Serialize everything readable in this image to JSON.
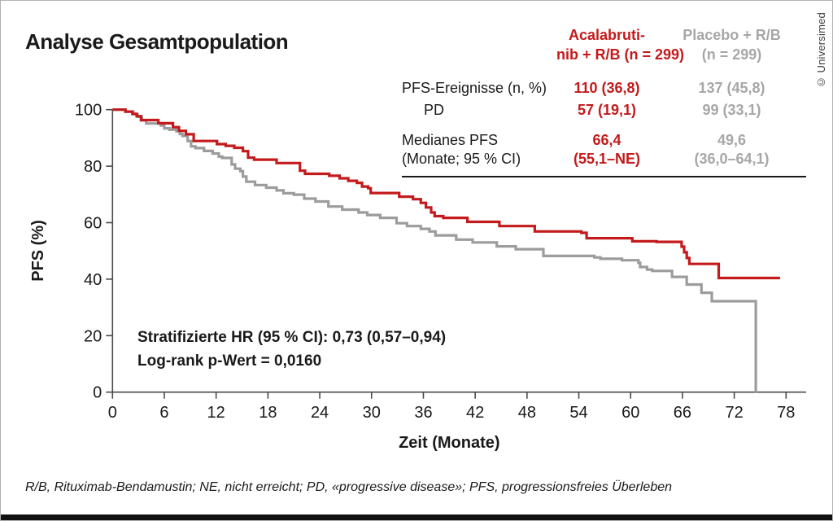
{
  "meta": {
    "title": "Analyse Gesamtpopulation",
    "copyright": "© Universimed"
  },
  "table": {
    "header": {
      "col1_line1": "Acalabruti-",
      "col1_line2": "nib + R/B (n = 299)",
      "col2_line1": "Placebo + R/B",
      "col2_line2": "(n = 299)"
    },
    "row1": {
      "label": "PFS-Ereignisse (n, %)",
      "v1": "110 (36,8)",
      "v2": "137 (45,8)"
    },
    "row2": {
      "label": "PD",
      "v1": "57 (19,1)",
      "v2": "99 (33,1)"
    },
    "row3": {
      "label_line1": "Medianes PFS",
      "label_line2": "(Monate; 95 % CI)",
      "v1_line1": "66,4",
      "v1_line2": "(55,1–NE)",
      "v2_line1": "49,6",
      "v2_line2": "(36,0–64,1)"
    }
  },
  "annotation": {
    "line1": "Stratifizierte HR (95 % CI): 0,73 (0,57–0,94)",
    "line2": "Log-rank p-Wert = 0,0160"
  },
  "footnote": "R/B, Rituximab-Bendamustin; NE, nicht erreicht; PD, «progressive disease»; PFS, progressionsfreies Überleben",
  "colors": {
    "acalabrutinib": "#c41a1b",
    "placebo_line": "#9c9c9c",
    "placebo_text": "#a7a7a7",
    "axis": "#4a4a4a"
  },
  "chart_data": {
    "type": "line",
    "subtype": "kaplan-meier-step",
    "title": "Analyse Gesamtpopulation",
    "xlabel": "Zeit (Monate)",
    "ylabel": "PFS (%)",
    "xlim": [
      0,
      78
    ],
    "ylim": [
      0,
      100
    ],
    "x_ticks": [
      0,
      6,
      12,
      18,
      24,
      30,
      36,
      42,
      48,
      54,
      60,
      66,
      72,
      78
    ],
    "y_ticks": [
      0,
      20,
      40,
      60,
      80,
      100
    ],
    "grid": false,
    "legend": "table-top-right",
    "series": [
      {
        "name": "Acalabrutinib + R/B",
        "n": 299,
        "color": "#c41a1b",
        "points": [
          [
            0,
            100
          ],
          [
            1.5,
            99.3
          ],
          [
            2.3,
            98.5
          ],
          [
            2.8,
            97.7
          ],
          [
            3.3,
            96.3
          ],
          [
            5.3,
            95.2
          ],
          [
            7.0,
            93.8
          ],
          [
            7.7,
            92.5
          ],
          [
            8.5,
            91.3
          ],
          [
            9.4,
            88.9
          ],
          [
            12.1,
            87.8
          ],
          [
            13.1,
            87.2
          ],
          [
            14.1,
            86.5
          ],
          [
            15.1,
            85.3
          ],
          [
            15.7,
            83.0
          ],
          [
            16.4,
            82.3
          ],
          [
            19.0,
            81.1
          ],
          [
            21.7,
            78.4
          ],
          [
            22.3,
            77.3
          ],
          [
            25.1,
            76.6
          ],
          [
            26.3,
            75.7
          ],
          [
            27.3,
            74.8
          ],
          [
            28.3,
            74.1
          ],
          [
            28.9,
            72.8
          ],
          [
            29.6,
            72.2
          ],
          [
            29.9,
            70.5
          ],
          [
            33.2,
            69.2
          ],
          [
            34.8,
            68.3
          ],
          [
            35.7,
            67.0
          ],
          [
            36.3,
            65.4
          ],
          [
            36.9,
            63.6
          ],
          [
            37.3,
            62.3
          ],
          [
            38.3,
            61.7
          ],
          [
            41.1,
            60.3
          ],
          [
            44.8,
            58.8
          ],
          [
            48.9,
            56.9
          ],
          [
            54.3,
            56.4
          ],
          [
            54.9,
            54.5
          ],
          [
            60.2,
            53.4
          ],
          [
            63.0,
            53.2
          ],
          [
            65.9,
            51.5
          ],
          [
            66.2,
            49.5
          ],
          [
            66.5,
            47.5
          ],
          [
            66.8,
            45.4
          ],
          [
            70.2,
            40.4
          ],
          [
            77.3,
            40.4
          ]
        ]
      },
      {
        "name": "Placebo + R/B",
        "n": 299,
        "color": "#9c9c9c",
        "points": [
          [
            0,
            100
          ],
          [
            1.5,
            99.3
          ],
          [
            2.4,
            98.4
          ],
          [
            2.9,
            97.5
          ],
          [
            3.4,
            96.2
          ],
          [
            3.9,
            95.1
          ],
          [
            5.6,
            94.4
          ],
          [
            6.0,
            93.4
          ],
          [
            6.6,
            92.9
          ],
          [
            7.4,
            92.4
          ],
          [
            7.8,
            91.4
          ],
          [
            8.1,
            90.7
          ],
          [
            8.7,
            88.9
          ],
          [
            9.1,
            87.0
          ],
          [
            9.6,
            86.4
          ],
          [
            10.6,
            85.4
          ],
          [
            11.6,
            84.5
          ],
          [
            12.3,
            83.4
          ],
          [
            12.7,
            82.9
          ],
          [
            13.8,
            80.6
          ],
          [
            14.2,
            79.1
          ],
          [
            14.8,
            78.2
          ],
          [
            15.1,
            76.3
          ],
          [
            15.5,
            74.5
          ],
          [
            16.5,
            73.3
          ],
          [
            17.8,
            72.4
          ],
          [
            19.0,
            71.4
          ],
          [
            19.8,
            70.4
          ],
          [
            21.0,
            69.9
          ],
          [
            22.2,
            68.5
          ],
          [
            23.5,
            67.5
          ],
          [
            25.0,
            65.7
          ],
          [
            26.6,
            64.6
          ],
          [
            28.5,
            63.6
          ],
          [
            29.5,
            62.7
          ],
          [
            31.0,
            61.7
          ],
          [
            32.9,
            59.8
          ],
          [
            34.1,
            58.8
          ],
          [
            35.7,
            57.8
          ],
          [
            36.7,
            56.9
          ],
          [
            37.4,
            55.5
          ],
          [
            39.8,
            54.0
          ],
          [
            41.7,
            53.0
          ],
          [
            44.5,
            51.6
          ],
          [
            46.7,
            50.6
          ],
          [
            49.9,
            48.2
          ],
          [
            55.8,
            47.7
          ],
          [
            56.5,
            47.2
          ],
          [
            59.0,
            46.7
          ],
          [
            60.9,
            45.8
          ],
          [
            61.1,
            44.3
          ],
          [
            61.9,
            43.4
          ],
          [
            62.5,
            42.9
          ],
          [
            64.8,
            40.8
          ],
          [
            66.5,
            38.1
          ],
          [
            68.2,
            35.2
          ],
          [
            69.4,
            32.2
          ],
          [
            74.5,
            0
          ]
        ]
      }
    ]
  }
}
